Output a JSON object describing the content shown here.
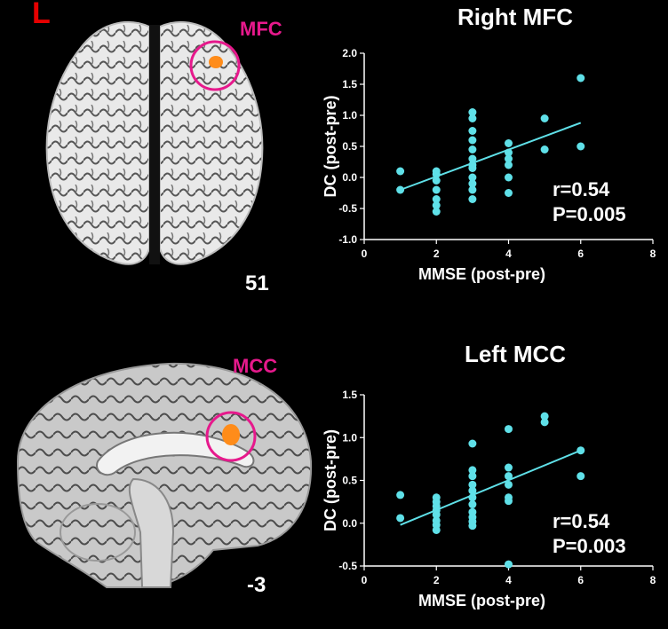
{
  "figure": {
    "side_label": "L",
    "panels": [
      {
        "region_label": "MFC",
        "slice_number": "51",
        "brain_view": "axial-slice",
        "plot_title": "Right MFC",
        "stats": {
          "r": "r=0.54",
          "p": "P=0.005"
        }
      },
      {
        "region_label": "MCC",
        "slice_number": "-3",
        "brain_view": "sagittal-slice",
        "plot_title": "Left MCC",
        "stats": {
          "r": "r=0.54",
          "p": "P=0.003"
        }
      }
    ]
  },
  "colors": {
    "background": "#000000",
    "marker": "#5fe0e8",
    "highlight": "#e6198c",
    "activation": "#ff8c1a",
    "side_label": "#e60000"
  },
  "chart_data": [
    {
      "type": "scatter",
      "title": "Right MFC",
      "xlabel": "MMSE  (post-pre)",
      "ylabel": "DC (post-pre)",
      "xlim": [
        0,
        8
      ],
      "ylim": [
        -1.0,
        2.0
      ],
      "xticks": [
        "0",
        "2",
        "4",
        "6",
        "8"
      ],
      "yticks": [
        "-1.0",
        "-0.5",
        "0.0",
        "0.5",
        "1.0",
        "1.5",
        "2.0"
      ],
      "points": [
        [
          1,
          0.1
        ],
        [
          1,
          -0.2
        ],
        [
          2,
          0.1
        ],
        [
          2,
          0.05
        ],
        [
          2,
          -0.05
        ],
        [
          2,
          -0.2
        ],
        [
          2,
          -0.35
        ],
        [
          2,
          -0.45
        ],
        [
          2,
          -0.55
        ],
        [
          3,
          1.05
        ],
        [
          3,
          0.95
        ],
        [
          3,
          0.75
        ],
        [
          3,
          0.6
        ],
        [
          3,
          0.45
        ],
        [
          3,
          0.3
        ],
        [
          3,
          0.2
        ],
        [
          3,
          0.15
        ],
        [
          3,
          0.0
        ],
        [
          3,
          -0.1
        ],
        [
          3,
          -0.2
        ],
        [
          3,
          -0.35
        ],
        [
          4,
          0.55
        ],
        [
          4,
          0.4
        ],
        [
          4,
          0.3
        ],
        [
          4,
          0.2
        ],
        [
          4,
          0.0
        ],
        [
          4,
          -0.25
        ],
        [
          5,
          0.95
        ],
        [
          5,
          0.45
        ],
        [
          6,
          1.6
        ],
        [
          6,
          0.5
        ]
      ],
      "fit_line": [
        [
          1,
          -0.2
        ],
        [
          6,
          0.88
        ]
      ]
    },
    {
      "type": "scatter",
      "title": "Left MCC",
      "xlabel": "MMSE  (post-pre)",
      "ylabel": "DC (post-pre)",
      "xlim": [
        0,
        8
      ],
      "ylim": [
        -0.5,
        1.5
      ],
      "xticks": [
        "0",
        "2",
        "4",
        "6",
        "8"
      ],
      "yticks": [
        "-0.5",
        "0.0",
        "0.5",
        "1.0",
        "1.5"
      ],
      "points": [
        [
          1,
          0.33
        ],
        [
          1,
          0.06
        ],
        [
          2,
          0.3
        ],
        [
          2,
          0.25
        ],
        [
          2,
          0.2
        ],
        [
          2,
          0.15
        ],
        [
          2,
          0.1
        ],
        [
          2,
          0.03
        ],
        [
          2,
          -0.02
        ],
        [
          2,
          -0.08
        ],
        [
          3,
          0.93
        ],
        [
          3,
          0.62
        ],
        [
          3,
          0.55
        ],
        [
          3,
          0.45
        ],
        [
          3,
          0.38
        ],
        [
          3,
          0.3
        ],
        [
          3,
          0.22
        ],
        [
          3,
          0.13
        ],
        [
          3,
          0.07
        ],
        [
          3,
          0.02
        ],
        [
          3,
          -0.03
        ],
        [
          4,
          1.1
        ],
        [
          4,
          0.65
        ],
        [
          4,
          0.55
        ],
        [
          4,
          0.45
        ],
        [
          4,
          0.3
        ],
        [
          4,
          0.26
        ],
        [
          4,
          -0.48
        ],
        [
          5,
          1.25
        ],
        [
          5,
          1.18
        ],
        [
          6,
          0.85
        ],
        [
          6,
          0.55
        ]
      ],
      "fit_line": [
        [
          1,
          -0.02
        ],
        [
          6,
          0.85
        ]
      ]
    }
  ]
}
